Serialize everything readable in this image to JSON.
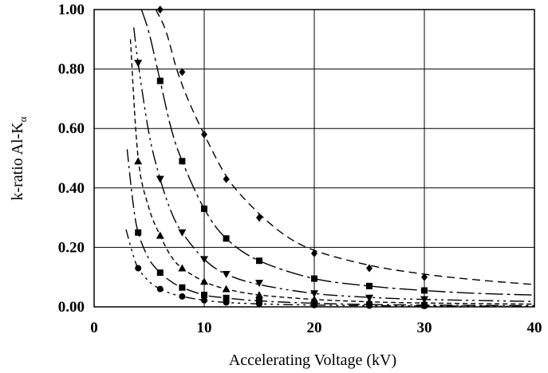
{
  "chart_data": {
    "type": "scatter",
    "title": "",
    "xlabel": "Accelerating Voltage (kV)",
    "ylabel": "k-ratio Al-K",
    "ylabel_subscript": "α",
    "xlim": [
      0,
      40
    ],
    "ylim": [
      0,
      1.0
    ],
    "x_ticks": [
      0,
      10,
      20,
      30,
      40
    ],
    "x_tick_labels": [
      "0",
      "10",
      "20",
      "30",
      "40"
    ],
    "y_ticks": [
      0,
      0.2,
      0.4,
      0.6,
      0.8,
      1.0
    ],
    "y_tick_labels": [
      "0.00",
      "0.20",
      "0.40",
      "0.60",
      "0.80",
      "1.00"
    ],
    "grid": true,
    "legend": "none",
    "series": [
      {
        "marker": "diamond",
        "points": [
          [
            6,
            1.0
          ],
          [
            8,
            0.79
          ],
          [
            10,
            0.58
          ],
          [
            12,
            0.43
          ],
          [
            15,
            0.3
          ],
          [
            20,
            0.18
          ],
          [
            25,
            0.13
          ],
          [
            30,
            0.1
          ]
        ],
        "curve": [
          [
            5.6,
            1.0
          ],
          [
            6.5,
            0.93
          ],
          [
            7.5,
            0.8
          ],
          [
            8.5,
            0.7
          ],
          [
            10,
            0.58
          ],
          [
            12,
            0.44
          ],
          [
            14,
            0.35
          ],
          [
            17,
            0.25
          ],
          [
            20,
            0.19
          ],
          [
            25,
            0.14
          ],
          [
            30,
            0.11
          ],
          [
            35,
            0.09
          ],
          [
            40,
            0.075
          ]
        ]
      },
      {
        "marker": "square",
        "points": [
          [
            6,
            0.76
          ],
          [
            8,
            0.49
          ],
          [
            10,
            0.33
          ],
          [
            12,
            0.23
          ],
          [
            15,
            0.155
          ],
          [
            20,
            0.095
          ],
          [
            25,
            0.07
          ],
          [
            30,
            0.055
          ]
        ],
        "curve": [
          [
            4.3,
            1.0
          ],
          [
            5,
            0.92
          ],
          [
            6,
            0.76
          ],
          [
            7,
            0.6
          ],
          [
            8,
            0.49
          ],
          [
            10,
            0.33
          ],
          [
            12,
            0.23
          ],
          [
            15,
            0.155
          ],
          [
            20,
            0.095
          ],
          [
            25,
            0.07
          ],
          [
            30,
            0.055
          ],
          [
            35,
            0.045
          ],
          [
            40,
            0.04
          ]
        ]
      },
      {
        "marker": "triangle-down",
        "points": [
          [
            4,
            0.82
          ],
          [
            6,
            0.43
          ],
          [
            8,
            0.25
          ],
          [
            10,
            0.16
          ],
          [
            12,
            0.11
          ],
          [
            15,
            0.08
          ],
          [
            20,
            0.045
          ],
          [
            25,
            0.03
          ],
          [
            30,
            0.025
          ]
        ],
        "curve": [
          [
            3.6,
            0.94
          ],
          [
            4,
            0.82
          ],
          [
            5,
            0.58
          ],
          [
            6,
            0.43
          ],
          [
            7,
            0.32
          ],
          [
            8,
            0.25
          ],
          [
            10,
            0.16
          ],
          [
            12,
            0.11
          ],
          [
            15,
            0.075
          ],
          [
            20,
            0.045
          ],
          [
            25,
            0.032
          ],
          [
            30,
            0.025
          ],
          [
            40,
            0.018
          ]
        ]
      },
      {
        "marker": "triangle-up",
        "points": [
          [
            4,
            0.49
          ],
          [
            6,
            0.24
          ],
          [
            8,
            0.13
          ],
          [
            10,
            0.085
          ],
          [
            12,
            0.06
          ],
          [
            15,
            0.04
          ],
          [
            20,
            0.025
          ],
          [
            25,
            0.017
          ],
          [
            30,
            0.012
          ]
        ],
        "curve": [
          [
            3.3,
            0.9
          ],
          [
            4,
            0.5
          ],
          [
            5,
            0.33
          ],
          [
            6,
            0.24
          ],
          [
            7,
            0.17
          ],
          [
            8,
            0.13
          ],
          [
            10,
            0.085
          ],
          [
            12,
            0.06
          ],
          [
            15,
            0.04
          ],
          [
            20,
            0.025
          ],
          [
            25,
            0.017
          ],
          [
            30,
            0.013
          ],
          [
            40,
            0.009
          ]
        ]
      },
      {
        "marker": "square",
        "points": [
          [
            4,
            0.25
          ],
          [
            6,
            0.115
          ],
          [
            8,
            0.065
          ],
          [
            10,
            0.04
          ],
          [
            12,
            0.03
          ],
          [
            15,
            0.02
          ],
          [
            20,
            0.012
          ],
          [
            25,
            0.008
          ],
          [
            30,
            0.006
          ]
        ],
        "curve": [
          [
            3.0,
            0.53
          ],
          [
            3.5,
            0.36
          ],
          [
            4,
            0.25
          ],
          [
            5,
            0.16
          ],
          [
            6,
            0.115
          ],
          [
            7,
            0.085
          ],
          [
            8,
            0.065
          ],
          [
            10,
            0.04
          ],
          [
            12,
            0.03
          ],
          [
            15,
            0.02
          ],
          [
            20,
            0.012
          ],
          [
            25,
            0.008
          ],
          [
            30,
            0.006
          ],
          [
            40,
            0.004
          ]
        ]
      },
      {
        "marker": "circle",
        "points": [
          [
            4,
            0.13
          ],
          [
            6,
            0.06
          ],
          [
            8,
            0.035
          ],
          [
            10,
            0.022
          ],
          [
            12,
            0.015
          ],
          [
            15,
            0.01
          ],
          [
            20,
            0.006
          ],
          [
            25,
            0.004
          ],
          [
            30,
            0.003
          ]
        ],
        "curve": [
          [
            2.9,
            0.26
          ],
          [
            3.5,
            0.18
          ],
          [
            4,
            0.13
          ],
          [
            5,
            0.085
          ],
          [
            6,
            0.06
          ],
          [
            7,
            0.045
          ],
          [
            8,
            0.035
          ],
          [
            10,
            0.022
          ],
          [
            12,
            0.015
          ],
          [
            15,
            0.01
          ],
          [
            20,
            0.006
          ],
          [
            25,
            0.004
          ],
          [
            30,
            0.003
          ],
          [
            40,
            0.002
          ]
        ]
      }
    ],
    "line_dash": [
      "10,6",
      "22,5,4,5",
      "18,5,3,5,3,5",
      "6,4",
      "16,5,3,5",
      "12,5,3,5,3,5,3,5"
    ]
  }
}
